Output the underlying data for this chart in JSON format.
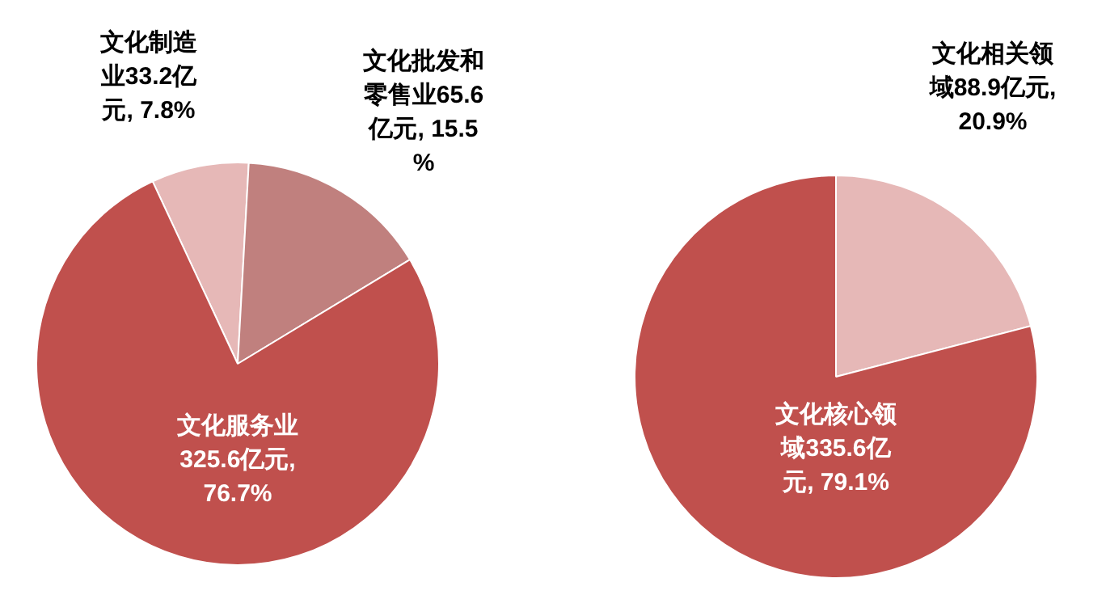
{
  "chart_data": [
    {
      "type": "pie",
      "categories": [
        "文化制造业",
        "文化批发和零售业",
        "文化服务业"
      ],
      "values": [
        33.2,
        65.6,
        325.6
      ],
      "colors": [
        "#e6b8b7",
        "#c0807e",
        "#c0504d"
      ],
      "value_labels": [
        "33.2亿元, 7.8%",
        "65.6亿元, 15.5%",
        "325.6亿元, 76.7%"
      ],
      "legend": false
    },
    {
      "type": "pie",
      "categories": [
        "文化相关领域",
        "文化核心领域"
      ],
      "values": [
        88.9,
        335.6
      ],
      "colors": [
        "#e6b8b7",
        "#c0504d"
      ],
      "value_labels": [
        "88.9亿元, 20.9%",
        "335.6亿元, 79.1%"
      ],
      "legend": false
    }
  ]
}
